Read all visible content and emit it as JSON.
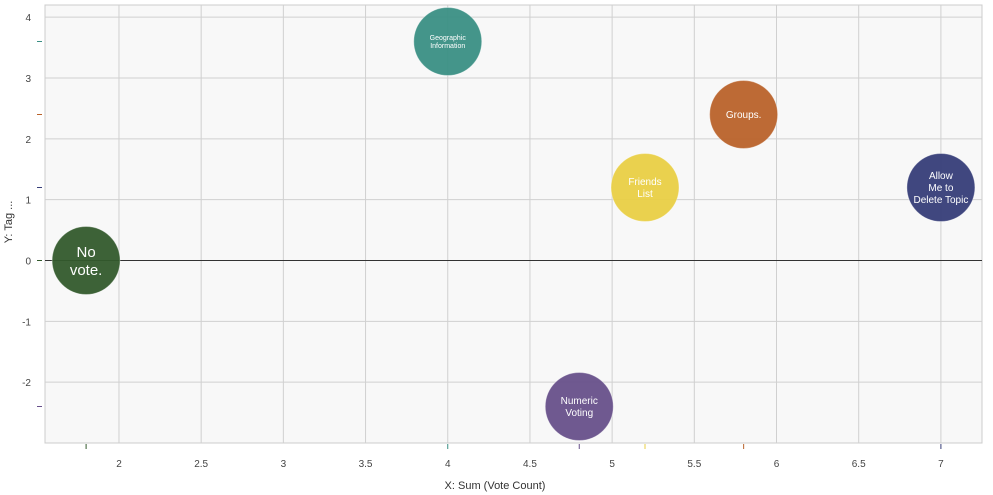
{
  "chart_data": {
    "type": "scatter",
    "title": "",
    "xlabel": "X: Sum (Vote Count)",
    "ylabel": "Y: Tag ...",
    "xlim": [
      1.55,
      7.25
    ],
    "ylim": [
      -3.0,
      4.2
    ],
    "x_ticks": [
      "2",
      "2.5",
      "3",
      "3.5",
      "4",
      "4.5",
      "5",
      "5.5",
      "6",
      "6.5",
      "7"
    ],
    "y_ticks": [
      "-2",
      "-1",
      "0",
      "1",
      "2",
      "3",
      "4"
    ],
    "grid": true,
    "background": "#f8f8f8",
    "points": [
      {
        "label": "Geographic Information",
        "lines": [
          "Geographic",
          "Information"
        ],
        "x": 4.0,
        "y": 3.6,
        "color": "#3a8f84"
      },
      {
        "label": "Groups.",
        "lines": [
          "Groups."
        ],
        "x": 5.8,
        "y": 2.4,
        "color": "#b9622a"
      },
      {
        "label": "Friends List",
        "lines": [
          "Friends",
          "List"
        ],
        "x": 5.2,
        "y": 1.2,
        "color": "#e9cf45"
      },
      {
        "label": "Allow Me to Delete Topic",
        "lines": [
          "Allow",
          "Me to",
          "Delete Topic"
        ],
        "x": 7.0,
        "y": 1.2,
        "color": "#363d78"
      },
      {
        "label": "No vote.",
        "lines": [
          "No",
          "vote."
        ],
        "x": 1.8,
        "y": 0.0,
        "color": "#335a2c"
      },
      {
        "label": "Numeric Voting",
        "lines": [
          "Numeric",
          "Voting"
        ],
        "x": 4.8,
        "y": -2.4,
        "color": "#67508a"
      }
    ]
  }
}
